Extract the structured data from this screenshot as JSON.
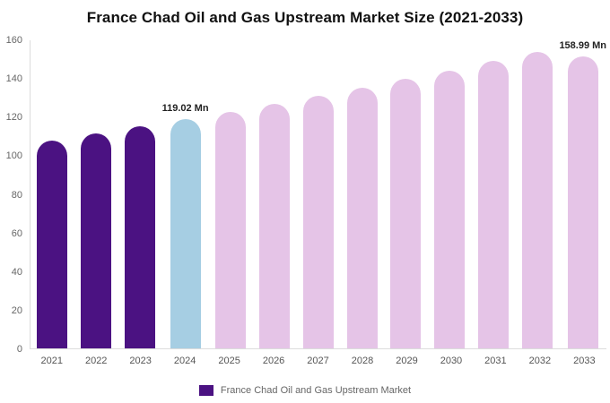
{
  "legend": {
    "label": "France Chad Oil and Gas Upstream Market",
    "color": "#4B1282"
  },
  "chart_data": {
    "type": "bar",
    "title": "France Chad Oil and Gas Upstream Market Size (2021-2033)",
    "unit": "Mn",
    "categories": [
      "2021",
      "2022",
      "2023",
      "2024",
      "2025",
      "2026",
      "2027",
      "2028",
      "2029",
      "2030",
      "2031",
      "2032",
      "2033"
    ],
    "values": [
      108.1,
      111.6,
      115.3,
      119.02,
      122.9,
      126.9,
      131.1,
      135.4,
      139.8,
      144.3,
      149.1,
      153.9,
      158.99
    ],
    "bar_colors": [
      "#4B1282",
      "#4B1282",
      "#4B1282",
      "#A6CEE3",
      "#E5C4E7",
      "#E5C4E7",
      "#E5C4E7",
      "#E5C4E7",
      "#E5C4E7",
      "#E5C4E7",
      "#E5C4E7",
      "#E5C4E7",
      "#E5C4E7"
    ],
    "ylim": [
      0,
      160
    ],
    "yticks": [
      0,
      20,
      40,
      60,
      80,
      100,
      120,
      140,
      160
    ],
    "grid": false,
    "legend_position": "bottom",
    "annotations": [
      {
        "index": 3,
        "text": "119.02 Mn"
      },
      {
        "index": 12,
        "text": "158.99 Mn"
      }
    ]
  }
}
